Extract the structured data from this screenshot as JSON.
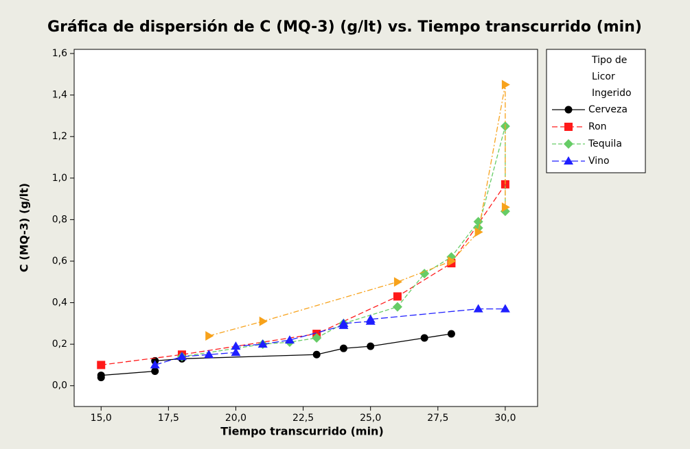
{
  "chart_data": {
    "type": "scatter",
    "title": "Gráfica de dispersión de C (MQ-3) (g/lt) vs. Tiempo transcurrido (min)",
    "x_label": "Tiempo transcurrido (min)",
    "y_label": "C (MQ-3) (g/lt)",
    "legend_title": [
      "Tipo de",
      "Licor",
      "Ingerido"
    ],
    "xlim": [
      14.0,
      31.2
    ],
    "ylim": [
      -0.1,
      1.62
    ],
    "xticks": [
      {
        "value": 15,
        "label": "15,0"
      },
      {
        "value": 17.5,
        "label": "17,5"
      },
      {
        "value": 20,
        "label": "20,0"
      },
      {
        "value": 22.5,
        "label": "22,5"
      },
      {
        "value": 25,
        "label": "25,0"
      },
      {
        "value": 27.5,
        "label": "27,5"
      },
      {
        "value": 30,
        "label": "30,0"
      }
    ],
    "yticks": [
      {
        "value": 0,
        "label": "0,0"
      },
      {
        "value": 0.2,
        "label": "0,2"
      },
      {
        "value": 0.4,
        "label": "0,4"
      },
      {
        "value": 0.6,
        "label": "0,6"
      },
      {
        "value": 0.8,
        "label": "0,8"
      },
      {
        "value": 1.0,
        "label": "1,0"
      },
      {
        "value": 1.2,
        "label": "1,2"
      },
      {
        "value": 1.4,
        "label": "1,4"
      },
      {
        "value": 1.6,
        "label": "1,6"
      }
    ],
    "series": [
      {
        "name": "Cerveza",
        "color": "#000000",
        "marker": "circle",
        "dash": "none",
        "x": [
          15,
          15,
          17,
          17,
          18,
          23,
          24,
          25,
          27,
          28
        ],
        "values": [
          0.04,
          0.05,
          0.07,
          0.12,
          0.13,
          0.15,
          0.18,
          0.19,
          0.23,
          0.25
        ]
      },
      {
        "name": "Ron",
        "color": "#ff1a1a",
        "marker": "square",
        "dash": "8,4",
        "x": [
          15,
          18,
          23,
          26,
          28,
          30
        ],
        "values": [
          0.1,
          0.15,
          0.25,
          0.43,
          0.59,
          0.97
        ]
      },
      {
        "name": "Tequila",
        "color": "#66cc66",
        "marker": "diamond",
        "dash": "6,3",
        "x": [
          18,
          21,
          22,
          23,
          24,
          26,
          27,
          28,
          29,
          29,
          30,
          30
        ],
        "values": [
          0.14,
          0.2,
          0.21,
          0.23,
          0.3,
          0.38,
          0.54,
          0.62,
          0.79,
          0.76,
          1.25,
          0.84
        ]
      },
      {
        "name": "Vino",
        "color": "#1f1fff",
        "marker": "triangle",
        "dash": "10,4",
        "x": [
          17,
          18,
          19,
          20,
          20,
          21,
          22,
          24,
          24,
          25,
          25,
          29,
          30
        ],
        "values": [
          0.1,
          0.14,
          0.15,
          0.16,
          0.19,
          0.2,
          0.22,
          0.29,
          0.3,
          0.31,
          0.32,
          0.37,
          0.37
        ]
      },
      {
        "color": "#f7a21b",
        "marker": "triangle-right",
        "dash": "8,3,2,3",
        "x": [
          19,
          21,
          26,
          28,
          29,
          30,
          30
        ],
        "values": [
          0.24,
          0.31,
          0.5,
          0.6,
          0.74,
          1.45,
          0.86
        ]
      }
    ]
  }
}
